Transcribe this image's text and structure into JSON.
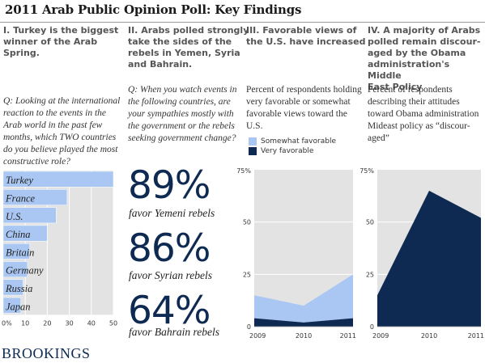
{
  "title": "2011 Arab Public Opinion Poll: Key Findings",
  "brand": "BROOKINGS",
  "colors": {
    "light_blue": "#a9c7f2",
    "dark_navy": "#0e2a52",
    "panel_gray": "#e3e3e3"
  },
  "sections": [
    {
      "heading": [
        "I. Turkey is the biggest",
        "winner of the Arab",
        "Spring."
      ],
      "question": [
        "Q: Looking at the international",
        "reaction to the events in the",
        "Arab world in the past few",
        "months, which TWO countries",
        "do you believe played the most",
        "constructive role?"
      ]
    },
    {
      "heading": [
        "II. Arabs polled strongly",
        "take the sides of the",
        "rebels in Yemen, Syria",
        "and Bahrain."
      ],
      "question": [
        "Q: When you watch events in",
        "the following countries, are",
        "your sympathies mostly with",
        "the government or the rebels",
        "seeking government change?"
      ]
    },
    {
      "heading": [
        "III. Favorable views of",
        "the U.S. have increased"
      ],
      "question": [
        "Percent of respondents holding",
        "very favorable or somewhat",
        "favorable views toward the",
        "U.S."
      ]
    },
    {
      "heading": [
        "IV. A majority of Arabs",
        "polled remain discour-",
        "aged by the Obama",
        "administration's Middle",
        "East Policy"
      ],
      "question": [
        "Percent of respondents",
        "describing their attitudes",
        "toward Obama administration",
        "Mideast policy as “discour-",
        "aged”"
      ]
    }
  ],
  "sympathies": [
    {
      "pct": "89%",
      "label": "favor Yemeni rebels"
    },
    {
      "pct": "86%",
      "label": "favor Syrian rebels"
    },
    {
      "pct": "64%",
      "label": "favor Bahrain rebels"
    }
  ],
  "legend": {
    "somewhat": "Somewhat favorable",
    "very": "Very favorable"
  },
  "chart_data": [
    {
      "type": "bar",
      "orientation": "horizontal",
      "categories": [
        "Turkey",
        "France",
        "U.S.",
        "China",
        "Britain",
        "Germany",
        "Russia",
        "Japan"
      ],
      "values": [
        50,
        29,
        24,
        20,
        12,
        11,
        9,
        8
      ],
      "xlim": [
        0,
        50
      ],
      "xticks": [
        "0%",
        "10",
        "20",
        "30",
        "40",
        "50"
      ]
    },
    {
      "type": "area",
      "x": [
        "2009",
        "2010",
        "2011"
      ],
      "series": [
        {
          "name": "Very favorable",
          "values": [
            4,
            2,
            4
          ]
        },
        {
          "name": "Somewhat favorable",
          "values": [
            11,
            8,
            21
          ]
        }
      ],
      "stacked": true,
      "ylim": [
        0,
        75
      ],
      "yticks": [
        "75%",
        "50",
        "25",
        "0"
      ]
    },
    {
      "type": "area",
      "x": [
        "2009",
        "2010",
        "2011"
      ],
      "series": [
        {
          "values": [
            15,
            65,
            52
          ]
        }
      ],
      "ylim": [
        0,
        75
      ],
      "yticks": [
        "75%",
        "50",
        "25",
        "0"
      ]
    }
  ]
}
